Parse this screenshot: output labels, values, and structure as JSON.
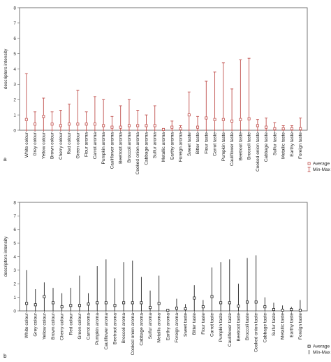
{
  "charts": [
    {
      "panel_label": "a",
      "ylabel": "descriptors intensity",
      "ylim": [
        0,
        8
      ],
      "yticks": [
        0,
        1,
        2,
        3,
        4,
        5,
        6,
        7,
        8
      ],
      "legend": {
        "mean": "Average",
        "range": "Min-Max"
      },
      "colors": {
        "mark": "#c0504d",
        "frame": "#555555"
      }
    },
    {
      "panel_label": "b",
      "ylabel": "descriptors intensity",
      "ylim": [
        0,
        8
      ],
      "yticks": [
        0,
        1,
        2,
        3,
        4,
        5,
        6,
        7,
        8
      ],
      "legend": {
        "mean": "Average",
        "range": "Min-Max"
      },
      "colors": {
        "mark": "#222222",
        "frame": "#555555"
      }
    }
  ],
  "chart_data": [
    {
      "type": "errorbar",
      "categories": [
        "White colour",
        "Grey colour",
        "Yellow colour",
        "Brown colour",
        "Cherry colour",
        "Red colour",
        "Green colour",
        "Flour aroma",
        "Carrot aroma",
        "Pumpkin aroma",
        "Cauliflower aroma",
        "Beetroot aroma",
        "Broccoli aroma",
        "Cooked onion aroma",
        "Cabbage aroma",
        "Sulfur aroma",
        "Metallic aroma",
        "Earthy aroma",
        "Foreign aroma",
        "Sweet taste",
        "Bitter taste",
        "Flour taste",
        "Carrot taste",
        "Pumpkin taste",
        "Cauliflower taste",
        "Beetroot taste",
        "Broccoli taste",
        "Cooked onion taste",
        "Cabbage taste",
        "Sulfur taste",
        "Metallic taste",
        "Earthy taste",
        "Foreign taste"
      ],
      "series": [
        {
          "name": "Average",
          "values": [
            0.7,
            0.4,
            0.9,
            0.4,
            0.3,
            0.4,
            0.4,
            0.4,
            0.4,
            0.3,
            0.2,
            0.2,
            0.3,
            0.3,
            0.3,
            0.3,
            0.05,
            0.2,
            0.1,
            1.0,
            0.2,
            0.8,
            0.7,
            0.7,
            0.6,
            0.7,
            0.75,
            0.3,
            0.2,
            0.1,
            0.1,
            0.1,
            0.1
          ]
        },
        {
          "name": "Min",
          "values": [
            0,
            0,
            0,
            0,
            0,
            0,
            0,
            0,
            0,
            0,
            0,
            0,
            0,
            0,
            0,
            0,
            0,
            0,
            0,
            0,
            0,
            0,
            0,
            0,
            0,
            0,
            0,
            0,
            0,
            0,
            0,
            0,
            0
          ]
        },
        {
          "name": "Max",
          "values": [
            3.7,
            1.2,
            2.1,
            1.2,
            1.3,
            1.7,
            2.6,
            1.2,
            2.2,
            2.0,
            0.9,
            1.6,
            2.0,
            1.3,
            1.0,
            1.6,
            0.1,
            0.6,
            0.3,
            2.5,
            0.9,
            3.2,
            3.8,
            4.4,
            2.7,
            4.6,
            4.7,
            0.7,
            0.8,
            0.5,
            0.3,
            0.3,
            0.8
          ]
        }
      ],
      "ylabel": "descriptors intensity",
      "ylim": [
        0,
        8
      ]
    },
    {
      "type": "errorbar",
      "categories": [
        "White colour",
        "Grey colour",
        "Yellow colour",
        "Brown colour",
        "Cherry colour",
        "Red colour",
        "Green colour",
        "Carrot aroma",
        "Pumpkin aroma",
        "Cauliflower aroma",
        "Beetroot aroma",
        "Broccoli aroma",
        "Cooked onion aroma",
        "Cabbage aroma",
        "Sulfur aroma",
        "Metallic aroma",
        "Earthy aroma",
        "Foreign aroma",
        "Sweet taste",
        "Bitter taste",
        "Flour taste",
        "Carrot taste",
        "Pumpkin taste",
        "Cauliflower taste",
        "Beetroot taste",
        "Broccoli taste",
        "Cooked onion taste",
        "Cabbage taste",
        "Sulfur taste",
        "Metallic taste",
        "Earthy taste",
        "Foreign taste"
      ],
      "series": [
        {
          "name": "Average",
          "values": [
            0.55,
            0.45,
            1.05,
            0.6,
            0.3,
            0.4,
            0.4,
            0.5,
            0.6,
            0.6,
            0.4,
            0.6,
            0.6,
            0.6,
            0.25,
            0.55,
            0.05,
            0.2,
            0.15,
            0.95,
            0.3,
            1.05,
            0.6,
            0.6,
            0.35,
            0.65,
            0.65,
            0.3,
            0.1,
            0.05,
            0.1,
            0.05
          ]
        },
        {
          "name": "Min",
          "values": [
            0,
            0,
            0,
            0,
            0,
            0,
            0,
            0,
            0,
            0,
            0,
            0,
            0,
            0,
            0,
            0,
            0,
            0,
            0,
            0,
            0,
            0,
            0,
            0,
            0,
            0,
            0,
            0,
            0,
            0,
            0,
            0
          ]
        },
        {
          "name": "Max",
          "values": [
            3.0,
            1.6,
            2.1,
            1.7,
            1.3,
            1.7,
            2.6,
            1.3,
            3.3,
            3.8,
            2.4,
            3.6,
            3.7,
            2.5,
            1.5,
            2.6,
            0.15,
            0.9,
            0.5,
            1.9,
            0.8,
            3.2,
            3.6,
            3.8,
            2.0,
            3.9,
            4.1,
            1.0,
            0.6,
            0.4,
            0.3,
            0.8
          ]
        }
      ],
      "ylabel": "descriptors intensity",
      "ylim": [
        0,
        8
      ]
    }
  ]
}
